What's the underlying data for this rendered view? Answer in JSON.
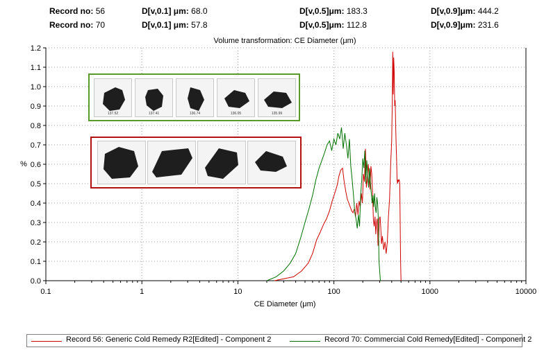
{
  "summary": [
    {
      "record_label": "Record no:",
      "record_value": "56",
      "d10_label": "D[v,0.1] μm:",
      "d10_value": "68.0",
      "d50_label": "D[v,0.5]μm:",
      "d50_value": "183.3",
      "d90_label": "D[v,0.9]μm:",
      "d90_value": "444.2"
    },
    {
      "record_label": "Record no:",
      "record_value": "70",
      "d10_label": "D[v,0.1] μm:",
      "d10_value": "57.8",
      "d50_label": "D[v,0.5]μm:",
      "d50_value": "112.8",
      "d90_label": "D[v,0.9]μm:",
      "d90_value": "231.6"
    }
  ],
  "thumbnails": {
    "green_panel_labels": [
      "137.52",
      "137.41",
      "136.74",
      "136.05",
      "135.99"
    ],
    "red_panel_labels": [
      "",
      "",
      "",
      ""
    ]
  },
  "colors": {
    "series1": "#d00000",
    "series2": "#007000",
    "green_panel": "#5a9a2a",
    "red_panel": "#b01010"
  },
  "chart_data": {
    "type": "line",
    "title": "Volume transformation: CE Diameter (μm)",
    "xlabel": "CE Diameter (μm)",
    "ylabel": "%",
    "xscale": "log",
    "xlim": [
      0.1,
      10000
    ],
    "ylim": [
      0,
      1.2
    ],
    "xticks": [
      "0.1",
      "1",
      "10",
      "100",
      "1000",
      "10000"
    ],
    "yticks": [
      "0.0",
      "0.1",
      "0.2",
      "0.3",
      "0.4",
      "0.5",
      "0.6",
      "0.7",
      "0.8",
      "0.9",
      "1.0",
      "1.1",
      "1.2"
    ],
    "grid": true,
    "legend_position": "bottom",
    "series": [
      {
        "name": "Record 56: Generic Cold Remedy R2[Edited] - Component 2",
        "color": "#d00000",
        "x": [
          24,
          30,
          38,
          46,
          54,
          60,
          66,
          72,
          78,
          84,
          90,
          96,
          102,
          108,
          113,
          118,
          123,
          128,
          133,
          138,
          143,
          148,
          153,
          158,
          163,
          168,
          173,
          178,
          183,
          188,
          193,
          198,
          203,
          208,
          213,
          218,
          223,
          228,
          233,
          238,
          243,
          248,
          253,
          258,
          263,
          268,
          273,
          278,
          283,
          288,
          293,
          298,
          303,
          308,
          313,
          320,
          330,
          340,
          350,
          360,
          370,
          380,
          390,
          400,
          405,
          410,
          415,
          420,
          425,
          430,
          435,
          440,
          445,
          450,
          455,
          460,
          465,
          470,
          475,
          480,
          485,
          490,
          495,
          500
        ],
        "y": [
          0.0,
          0.01,
          0.02,
          0.05,
          0.09,
          0.14,
          0.21,
          0.25,
          0.29,
          0.32,
          0.36,
          0.41,
          0.45,
          0.49,
          0.54,
          0.57,
          0.58,
          0.51,
          0.46,
          0.42,
          0.4,
          0.38,
          0.36,
          0.35,
          0.37,
          0.33,
          0.4,
          0.34,
          0.41,
          0.38,
          0.45,
          0.4,
          0.55,
          0.51,
          0.68,
          0.48,
          0.52,
          0.6,
          0.54,
          0.47,
          0.59,
          0.55,
          0.44,
          0.31,
          0.28,
          0.33,
          0.24,
          0.3,
          0.32,
          0.18,
          0.22,
          0.32,
          0.33,
          0.27,
          0.19,
          0.23,
          0.16,
          0.2,
          0.14,
          0.2,
          0.33,
          0.42,
          0.6,
          0.72,
          0.92,
          1.18,
          0.96,
          1.15,
          1.08,
          0.9,
          0.93,
          0.8,
          0.7,
          0.62,
          0.52,
          0.5,
          0.52,
          0.51,
          0.52,
          0.52,
          0.5,
          0.3,
          0.1,
          0.0
        ]
      },
      {
        "name": "Record 70: Commercial Cold Remedy[Edited] - Component 2",
        "color": "#007000",
        "x": [
          20,
          25,
          30,
          35,
          40,
          45,
          50,
          55,
          60,
          65,
          70,
          75,
          80,
          85,
          90,
          95,
          100,
          105,
          110,
          115,
          120,
          125,
          130,
          135,
          140,
          145,
          150,
          155,
          160,
          165,
          170,
          175,
          180,
          185,
          190,
          195,
          200,
          205,
          210,
          215,
          220,
          225,
          230,
          235,
          240,
          245,
          250,
          255,
          260,
          265,
          270,
          275,
          280,
          285,
          290,
          295,
          300,
          305
        ],
        "y": [
          0.0,
          0.02,
          0.05,
          0.09,
          0.14,
          0.22,
          0.3,
          0.37,
          0.44,
          0.52,
          0.58,
          0.62,
          0.66,
          0.7,
          0.72,
          0.67,
          0.73,
          0.7,
          0.76,
          0.73,
          0.79,
          0.68,
          0.76,
          0.7,
          0.63,
          0.73,
          0.59,
          0.52,
          0.44,
          0.35,
          0.32,
          0.27,
          0.34,
          0.28,
          0.44,
          0.52,
          0.63,
          0.58,
          0.67,
          0.5,
          0.62,
          0.55,
          0.48,
          0.58,
          0.51,
          0.45,
          0.4,
          0.44,
          0.38,
          0.45,
          0.38,
          0.35,
          0.43,
          0.4,
          0.32,
          0.1,
          0.05,
          0.0
        ]
      }
    ]
  }
}
